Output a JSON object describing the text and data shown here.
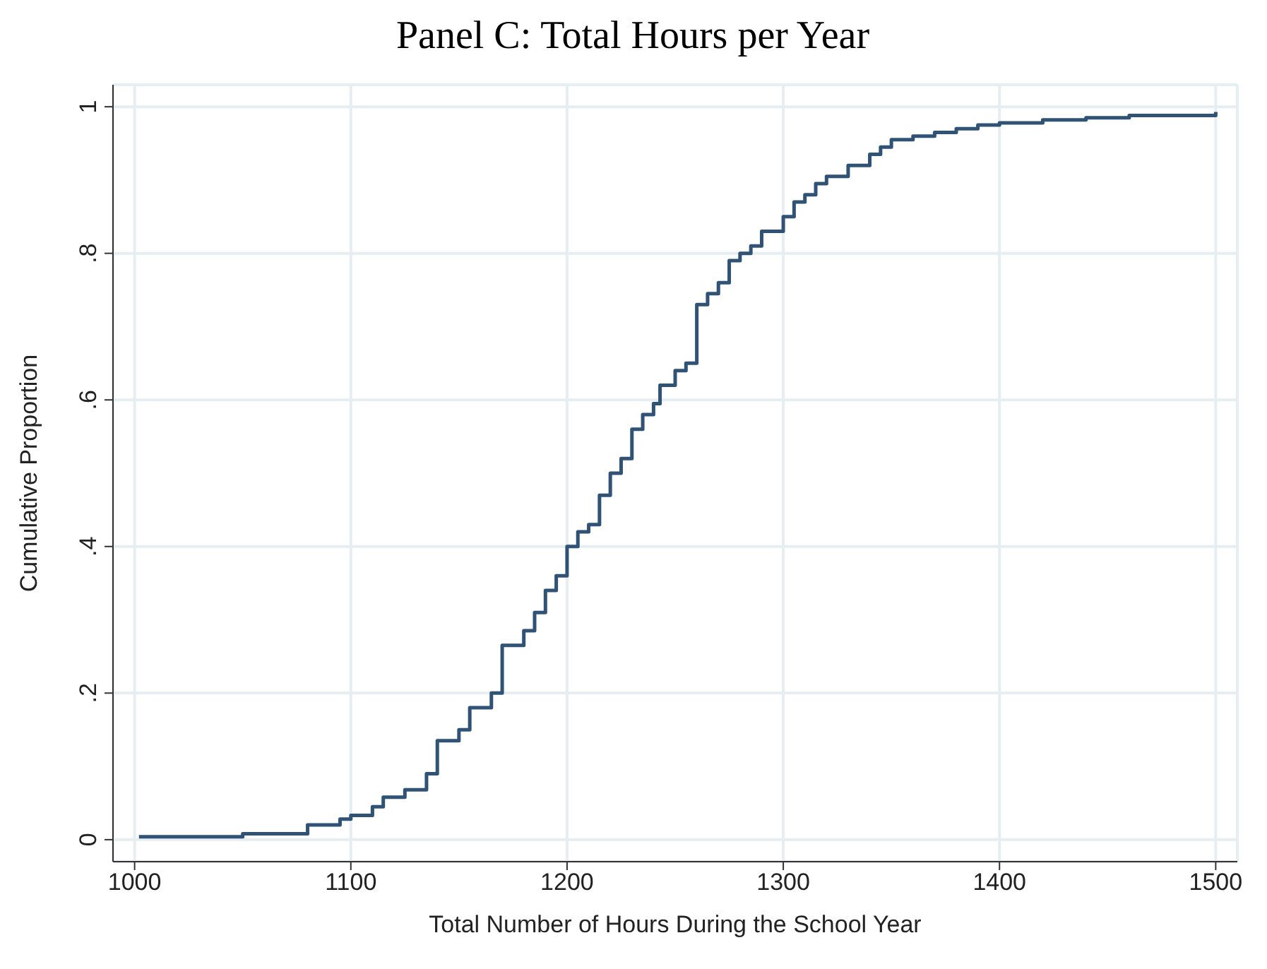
{
  "chart_data": {
    "type": "step",
    "title": "Panel C: Total Hours per Year",
    "xlabel": "Total Number of Hours During the School Year",
    "ylabel": "Cumulative Proportion",
    "x": [
      1002,
      1050,
      1080,
      1095,
      1100,
      1110,
      1115,
      1125,
      1135,
      1140,
      1150,
      1155,
      1165,
      1170,
      1180,
      1185,
      1190,
      1195,
      1200,
      1205,
      1210,
      1215,
      1220,
      1225,
      1230,
      1235,
      1240,
      1243,
      1250,
      1255,
      1260,
      1265,
      1270,
      1275,
      1280,
      1285,
      1290,
      1300,
      1305,
      1310,
      1315,
      1320,
      1330,
      1340,
      1345,
      1350,
      1360,
      1370,
      1380,
      1390,
      1400,
      1420,
      1440,
      1460,
      1500
    ],
    "series": [
      {
        "color": "#2f5275",
        "values": [
          0.004,
          0.008,
          0.02,
          0.028,
          0.033,
          0.045,
          0.058,
          0.068,
          0.09,
          0.135,
          0.15,
          0.18,
          0.2,
          0.265,
          0.285,
          0.31,
          0.34,
          0.36,
          0.4,
          0.42,
          0.43,
          0.47,
          0.5,
          0.52,
          0.56,
          0.58,
          0.595,
          0.62,
          0.64,
          0.65,
          0.73,
          0.745,
          0.76,
          0.79,
          0.8,
          0.81,
          0.83,
          0.85,
          0.87,
          0.88,
          0.895,
          0.905,
          0.92,
          0.935,
          0.945,
          0.955,
          0.96,
          0.965,
          0.97,
          0.975,
          0.978,
          0.982,
          0.985,
          0.988,
          0.993
        ]
      }
    ],
    "xlim": [
      990,
      1510
    ],
    "xticks": [
      1000,
      1100,
      1200,
      1300,
      1400,
      1500
    ],
    "ylim": [
      -0.03,
      1.03
    ],
    "yticks": [
      {
        "value": 0,
        "label": "0"
      },
      {
        "value": 0.2,
        "label": ".2"
      },
      {
        "value": 0.4,
        "label": ".4"
      },
      {
        "value": 0.6,
        "label": ".6"
      },
      {
        "value": 0.8,
        "label": ".8"
      },
      {
        "value": 1,
        "label": "1"
      }
    ],
    "grid": true,
    "legend": false
  }
}
